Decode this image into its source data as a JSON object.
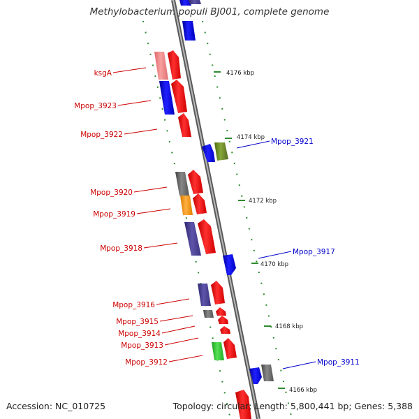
{
  "title": "Methylobacterium populi BJ001, complete genome",
  "footer": {
    "accession": "Accession: NC_010725",
    "summary": "Topology: circular; Length: 5,800,441 bp; Genes: 5,388"
  },
  "colors": {
    "backbone": "#8a8a8a",
    "tick": "#2e8b2e",
    "left_label": "#cc0000",
    "right_label": "#0000cc",
    "red": "#ff1a1a",
    "salmon": "#f08a8a",
    "blue": "#1010e6",
    "gray": "#6b6b6b",
    "orange": "#ff9a1a",
    "purple": "#4e4494",
    "green": "#33cc33",
    "olive": "#6b8e23"
  },
  "kbp_ticks": [
    {
      "label": "4176 kbp",
      "pos": 4176
    },
    {
      "label": "4174 kbp",
      "pos": 4174
    },
    {
      "label": "4172 kbp",
      "pos": 4172
    },
    {
      "label": "4170 kbp",
      "pos": 4170
    },
    {
      "label": "4168 kbp",
      "pos": 4168
    },
    {
      "label": "4166 kbp",
      "pos": 4166
    }
  ],
  "left_labels": [
    {
      "text": "ksgA"
    },
    {
      "text": "Mpop_3923"
    },
    {
      "text": "Mpop_3922"
    },
    {
      "text": "Mpop_3920"
    },
    {
      "text": "Mpop_3919"
    },
    {
      "text": "Mpop_3918"
    },
    {
      "text": "Mpop_3916"
    },
    {
      "text": "Mpop_3915"
    },
    {
      "text": "Mpop_3914"
    },
    {
      "text": "Mpop_3913"
    },
    {
      "text": "Mpop_3912"
    }
  ],
  "right_labels": [
    {
      "text": "Mpop_3921"
    },
    {
      "text": "Mpop_3917"
    },
    {
      "text": "Mpop_3911"
    }
  ]
}
